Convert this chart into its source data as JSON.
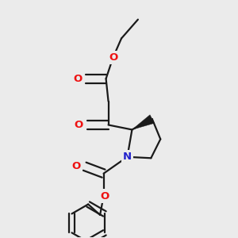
{
  "bg_color": "#ebebeb",
  "bond_color": "#1a1a1a",
  "oxygen_color": "#ee1111",
  "nitrogen_color": "#2222cc",
  "line_width": 1.6,
  "fig_size": [
    3.0,
    3.0
  ],
  "dpi": 100,
  "xlim": [
    0.0,
    1.0
  ],
  "ylim": [
    0.0,
    1.0
  ]
}
